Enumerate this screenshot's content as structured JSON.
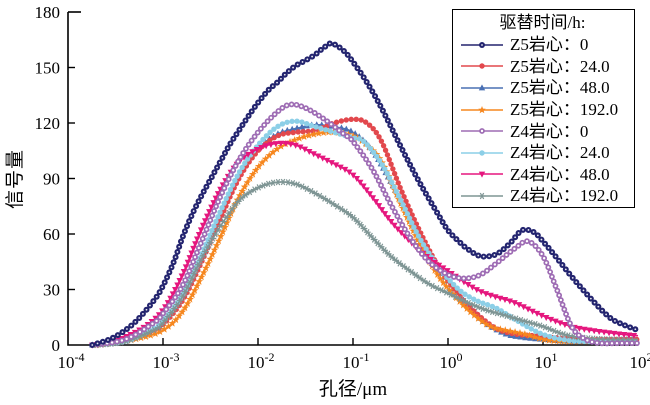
{
  "chart_data": {
    "type": "line",
    "title": "",
    "xlabel": "孔径/μm",
    "ylabel": "信号量",
    "x_scale": "log",
    "xlim": [
      0.0001,
      100
    ],
    "ylim": [
      0,
      180
    ],
    "y_ticks": [
      0,
      30,
      60,
      90,
      120,
      150,
      180
    ],
    "x_ticks": [
      {
        "base": "10",
        "exp": "-4"
      },
      {
        "base": "10",
        "exp": "-3"
      },
      {
        "base": "10",
        "exp": "-2"
      },
      {
        "base": "10",
        "exp": "-1"
      },
      {
        "base": "10",
        "exp": "0"
      },
      {
        "base": "10",
        "exp": "1"
      },
      {
        "base": "10",
        "exp": "2"
      }
    ],
    "grid": false,
    "axis_color": "#000000",
    "legend_title": "驱替时间/h:",
    "legend_position": "top-right",
    "series": [
      {
        "label": "Z5岩心：0",
        "core": "Z5",
        "time_h": "0",
        "color": "#23246f",
        "marker": "bead-circle",
        "points": [
          [
            0.00018,
            0
          ],
          [
            0.0003,
            4
          ],
          [
            0.0005,
            12
          ],
          [
            0.0008,
            24
          ],
          [
            0.001,
            32
          ],
          [
            0.0013,
            45
          ],
          [
            0.0016,
            58
          ],
          [
            0.002,
            70
          ],
          [
            0.0025,
            80
          ],
          [
            0.0032,
            90
          ],
          [
            0.004,
            99
          ],
          [
            0.005,
            108
          ],
          [
            0.0063,
            116
          ],
          [
            0.008,
            124
          ],
          [
            0.01,
            131
          ],
          [
            0.013,
            138
          ],
          [
            0.016,
            142
          ],
          [
            0.02,
            147
          ],
          [
            0.025,
            151
          ],
          [
            0.032,
            154
          ],
          [
            0.04,
            157
          ],
          [
            0.05,
            161
          ],
          [
            0.06,
            163
          ],
          [
            0.08,
            159
          ],
          [
            0.1,
            153
          ],
          [
            0.14,
            142
          ],
          [
            0.2,
            128
          ],
          [
            0.32,
            107
          ],
          [
            0.5,
            88
          ],
          [
            0.8,
            70
          ],
          [
            1.0,
            62
          ],
          [
            1.3,
            56
          ],
          [
            1.6,
            52
          ],
          [
            2.2,
            48
          ],
          [
            3.2,
            49
          ],
          [
            4.5,
            55
          ],
          [
            6.0,
            62
          ],
          [
            8.0,
            61
          ],
          [
            10,
            56
          ],
          [
            14,
            47
          ],
          [
            20,
            37
          ],
          [
            32,
            25
          ],
          [
            50,
            15
          ],
          [
            70,
            11
          ],
          [
            100,
            8
          ]
        ]
      },
      {
        "label": "Z5岩心：24.0",
        "core": "Z5",
        "time_h": "24.0",
        "color": "#e2484d",
        "marker": "circle",
        "points": [
          [
            0.00018,
            0
          ],
          [
            0.0004,
            2
          ],
          [
            0.0008,
            8
          ],
          [
            0.001,
            11
          ],
          [
            0.0016,
            24
          ],
          [
            0.0025,
            44
          ],
          [
            0.004,
            68
          ],
          [
            0.0063,
            90
          ],
          [
            0.01,
            105
          ],
          [
            0.016,
            113
          ],
          [
            0.025,
            115
          ],
          [
            0.04,
            116
          ],
          [
            0.063,
            120
          ],
          [
            0.1,
            122
          ],
          [
            0.14,
            120
          ],
          [
            0.2,
            110
          ],
          [
            0.32,
            84
          ],
          [
            0.5,
            62
          ],
          [
            0.8,
            42
          ],
          [
            1.3,
            27
          ],
          [
            2.0,
            17
          ],
          [
            3.2,
            9
          ],
          [
            5.0,
            6
          ],
          [
            8.0,
            5
          ],
          [
            13,
            4
          ],
          [
            25,
            3
          ],
          [
            50,
            3
          ],
          [
            100,
            3
          ]
        ]
      },
      {
        "label": "Z5岩心：48.0",
        "core": "Z5",
        "time_h": "48.0",
        "color": "#4a70b4",
        "marker": "triangle-up",
        "points": [
          [
            0.00018,
            0
          ],
          [
            0.0004,
            2
          ],
          [
            0.0008,
            9
          ],
          [
            0.001,
            12
          ],
          [
            0.0016,
            26
          ],
          [
            0.0025,
            46
          ],
          [
            0.004,
            70
          ],
          [
            0.0063,
            92
          ],
          [
            0.01,
            106
          ],
          [
            0.016,
            114
          ],
          [
            0.025,
            117
          ],
          [
            0.04,
            119
          ],
          [
            0.063,
            118
          ],
          [
            0.1,
            115
          ],
          [
            0.16,
            105
          ],
          [
            0.25,
            88
          ],
          [
            0.4,
            68
          ],
          [
            0.63,
            48
          ],
          [
            1.0,
            34
          ],
          [
            1.6,
            22
          ],
          [
            2.5,
            12
          ],
          [
            4.0,
            6
          ],
          [
            6.3,
            4
          ],
          [
            10,
            3
          ],
          [
            18,
            2
          ],
          [
            35,
            2
          ],
          [
            65,
            2
          ],
          [
            100,
            2
          ]
        ]
      },
      {
        "label": "Z5岩心：192.0",
        "core": "Z5",
        "time_h": "192.0",
        "color": "#f6871f",
        "marker": "star",
        "points": [
          [
            0.0002,
            0
          ],
          [
            0.0005,
            3
          ],
          [
            0.001,
            8
          ],
          [
            0.0016,
            18
          ],
          [
            0.0025,
            36
          ],
          [
            0.004,
            58
          ],
          [
            0.0063,
            80
          ],
          [
            0.01,
            96
          ],
          [
            0.016,
            106
          ],
          [
            0.025,
            111
          ],
          [
            0.04,
            114
          ],
          [
            0.063,
            115
          ],
          [
            0.1,
            113
          ],
          [
            0.14,
            108
          ],
          [
            0.2,
            99
          ],
          [
            0.32,
            76
          ],
          [
            0.5,
            55
          ],
          [
            0.8,
            37
          ],
          [
            1.3,
            24
          ],
          [
            2.0,
            15
          ],
          [
            2.8,
            10
          ],
          [
            4.0,
            8
          ],
          [
            6.3,
            6
          ],
          [
            10,
            3
          ],
          [
            16,
            2
          ],
          [
            30,
            2
          ],
          [
            60,
            2
          ],
          [
            100,
            2
          ]
        ]
      },
      {
        "label": "Z4岩心：0",
        "core": "Z4",
        "time_h": "0",
        "color": "#9e6cb4",
        "marker": "open-circle",
        "points": [
          [
            0.00018,
            0
          ],
          [
            0.0004,
            3
          ],
          [
            0.0008,
            12
          ],
          [
            0.001,
            17
          ],
          [
            0.0016,
            32
          ],
          [
            0.0025,
            55
          ],
          [
            0.004,
            80
          ],
          [
            0.0063,
            100
          ],
          [
            0.01,
            115
          ],
          [
            0.016,
            126
          ],
          [
            0.022,
            130
          ],
          [
            0.032,
            128
          ],
          [
            0.05,
            122
          ],
          [
            0.08,
            114
          ],
          [
            0.1,
            110
          ],
          [
            0.16,
            95
          ],
          [
            0.25,
            76
          ],
          [
            0.4,
            58
          ],
          [
            0.63,
            45
          ],
          [
            1.0,
            38
          ],
          [
            1.5,
            36
          ],
          [
            2.2,
            38
          ],
          [
            3.2,
            44
          ],
          [
            5.0,
            52
          ],
          [
            7.0,
            56
          ],
          [
            10,
            48
          ],
          [
            14,
            30
          ],
          [
            20,
            10
          ],
          [
            28,
            3
          ],
          [
            40,
            1
          ],
          [
            63,
            1
          ],
          [
            100,
            1
          ]
        ]
      },
      {
        "label": "Z4岩心：24.0",
        "core": "Z4",
        "time_h": "24.0",
        "color": "#8ccfe7",
        "marker": "circle",
        "points": [
          [
            0.00018,
            0
          ],
          [
            0.0004,
            2
          ],
          [
            0.0008,
            9
          ],
          [
            0.001,
            13
          ],
          [
            0.0016,
            27
          ],
          [
            0.0025,
            48
          ],
          [
            0.004,
            72
          ],
          [
            0.0063,
            93
          ],
          [
            0.01,
            108
          ],
          [
            0.016,
            118
          ],
          [
            0.025,
            121
          ],
          [
            0.04,
            118
          ],
          [
            0.063,
            115
          ],
          [
            0.1,
            112
          ],
          [
            0.13,
            110
          ],
          [
            0.2,
            98
          ],
          [
            0.32,
            78
          ],
          [
            0.5,
            58
          ],
          [
            0.8,
            42
          ],
          [
            1.3,
            30
          ],
          [
            2.0,
            24
          ],
          [
            3.2,
            20
          ],
          [
            5.0,
            14
          ],
          [
            8.0,
            8
          ],
          [
            11,
            5
          ],
          [
            16,
            3
          ],
          [
            25,
            2
          ],
          [
            50,
            2
          ],
          [
            100,
            2
          ]
        ]
      },
      {
        "label": "Z4岩心：48.0",
        "core": "Z4",
        "time_h": "48.0",
        "color": "#e5177e",
        "marker": "triangle-down",
        "points": [
          [
            0.00018,
            0
          ],
          [
            0.0003,
            2
          ],
          [
            0.0006,
            9
          ],
          [
            0.001,
            19
          ],
          [
            0.0016,
            38
          ],
          [
            0.0025,
            62
          ],
          [
            0.004,
            84
          ],
          [
            0.0063,
            99
          ],
          [
            0.01,
            106
          ],
          [
            0.016,
            109
          ],
          [
            0.025,
            108
          ],
          [
            0.04,
            103
          ],
          [
            0.063,
            98
          ],
          [
            0.1,
            92
          ],
          [
            0.16,
            80
          ],
          [
            0.25,
            67
          ],
          [
            0.4,
            56
          ],
          [
            0.63,
            47
          ],
          [
            1.0,
            40
          ],
          [
            1.6,
            33
          ],
          [
            2.2,
            29
          ],
          [
            3.2,
            26
          ],
          [
            5.0,
            23
          ],
          [
            8.0,
            18
          ],
          [
            12,
            14
          ],
          [
            20,
            10
          ],
          [
            32,
            8
          ],
          [
            63,
            6
          ],
          [
            100,
            5
          ]
        ]
      },
      {
        "label": "Z4岩心：192.0",
        "core": "Z4",
        "time_h": "192.0",
        "color": "#7e9594",
        "marker": "asterisk",
        "points": [
          [
            0.0002,
            0
          ],
          [
            0.0004,
            2
          ],
          [
            0.0008,
            8
          ],
          [
            0.001,
            12
          ],
          [
            0.0016,
            26
          ],
          [
            0.0025,
            46
          ],
          [
            0.004,
            64
          ],
          [
            0.0063,
            78
          ],
          [
            0.01,
            85
          ],
          [
            0.016,
            88
          ],
          [
            0.025,
            87
          ],
          [
            0.04,
            82
          ],
          [
            0.063,
            76
          ],
          [
            0.1,
            69
          ],
          [
            0.16,
            58
          ],
          [
            0.25,
            48
          ],
          [
            0.4,
            40
          ],
          [
            0.63,
            33
          ],
          [
            1.0,
            28
          ],
          [
            1.6,
            23
          ],
          [
            2.5,
            19
          ],
          [
            4.0,
            16
          ],
          [
            6.3,
            13
          ],
          [
            10,
            10
          ],
          [
            16,
            6
          ],
          [
            25,
            4
          ],
          [
            50,
            3
          ],
          [
            100,
            3
          ]
        ]
      }
    ]
  }
}
